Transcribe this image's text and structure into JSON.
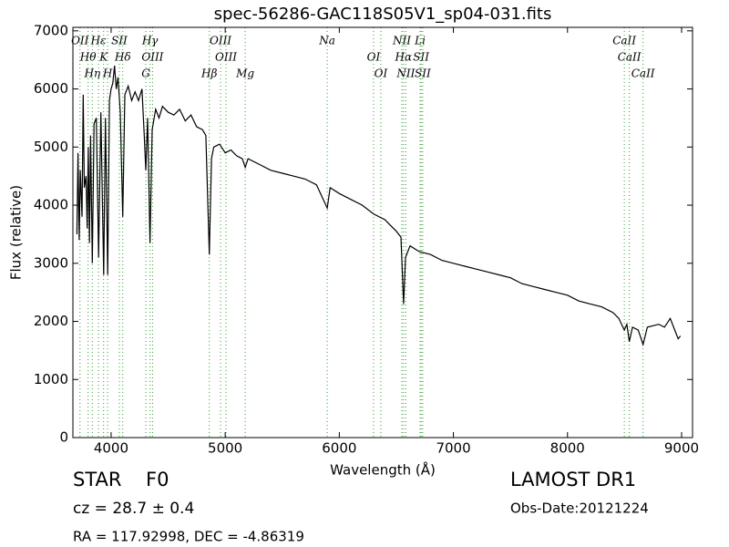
{
  "chart_data": {
    "type": "line",
    "title": "spec-56286-GAC118S05V1_sp04-031.fits",
    "x_label": "Wavelength (Å)",
    "y_label": "Flux (relative)",
    "color": "#000000",
    "marker_color": "#2ca02c",
    "xlim": [
      3665,
      9096
    ],
    "ylim": [
      0,
      7060
    ],
    "xticks": [
      4000,
      5000,
      6000,
      7000,
      8000,
      9000
    ],
    "yticks": [
      0,
      1000,
      2000,
      3000,
      4000,
      5000,
      6000,
      7000
    ],
    "x": [
      3700,
      3710,
      3720,
      3730,
      3745,
      3755,
      3765,
      3780,
      3790,
      3800,
      3810,
      3820,
      3835,
      3850,
      3870,
      3890,
      3910,
      3935,
      3950,
      3970,
      3985,
      4000,
      4015,
      4030,
      4045,
      4060,
      4080,
      4102,
      4120,
      4150,
      4180,
      4210,
      4240,
      4270,
      4290,
      4304,
      4320,
      4341,
      4360,
      4390,
      4420,
      4450,
      4500,
      4550,
      4600,
      4650,
      4700,
      4750,
      4800,
      4830,
      4861,
      4880,
      4900,
      4950,
      5000,
      5050,
      5100,
      5150,
      5175,
      5200,
      5300,
      5400,
      5500,
      5600,
      5700,
      5800,
      5894,
      5920,
      6000,
      6100,
      6200,
      6300,
      6400,
      6450,
      6500,
      6540,
      6563,
      6580,
      6620,
      6700,
      6800,
      6900,
      7000,
      7100,
      7200,
      7300,
      7400,
      7500,
      7600,
      7700,
      7800,
      7900,
      8000,
      8100,
      8200,
      8300,
      8400,
      8450,
      8498,
      8520,
      8542,
      8570,
      8620,
      8662,
      8700,
      8800,
      8850,
      8900,
      8940,
      8970,
      8990
    ],
    "values": [
      3500,
      4900,
      3400,
      4600,
      3800,
      5900,
      4300,
      4500,
      3600,
      5000,
      3350,
      5200,
      3000,
      5400,
      5500,
      3100,
      5600,
      2800,
      5500,
      2800,
      5800,
      6000,
      6100,
      6400,
      6000,
      6200,
      5600,
      3800,
      5900,
      6050,
      5800,
      5950,
      5800,
      6000,
      5200,
      4600,
      5500,
      3350,
      5300,
      5650,
      5500,
      5700,
      5600,
      5550,
      5650,
      5450,
      5550,
      5350,
      5300,
      5200,
      3150,
      4800,
      5000,
      5050,
      4900,
      4950,
      4850,
      4800,
      4650,
      4800,
      4700,
      4600,
      4550,
      4500,
      4450,
      4350,
      3950,
      4300,
      4200,
      4100,
      4000,
      3850,
      3750,
      3650,
      3550,
      3450,
      2300,
      3100,
      3300,
      3200,
      3150,
      3050,
      3000,
      2950,
      2900,
      2850,
      2800,
      2750,
      2650,
      2600,
      2550,
      2500,
      2450,
      2350,
      2300,
      2250,
      2150,
      2050,
      1850,
      1950,
      1650,
      1900,
      1850,
      1600,
      1900,
      1950,
      1900,
      2050,
      1850,
      1700,
      1750
    ],
    "lines": [
      {
        "wavelength": 3727,
        "label": "OII"
      },
      {
        "wavelength": 3798,
        "label": "Hθ"
      },
      {
        "wavelength": 3835,
        "label": "Hη"
      },
      {
        "wavelength": 3889,
        "label": "Hε"
      },
      {
        "wavelength": 3934,
        "label": "K"
      },
      {
        "wavelength": 3969,
        "label": "H"
      },
      {
        "wavelength": 4072,
        "label": "SII"
      },
      {
        "wavelength": 4102,
        "label": "Hδ"
      },
      {
        "wavelength": 4304,
        "label": "G"
      },
      {
        "wavelength": 4341,
        "label": "Hγ"
      },
      {
        "wavelength": 4363,
        "label": "OIII"
      },
      {
        "wavelength": 4861,
        "label": "Hβ"
      },
      {
        "wavelength": 4959,
        "label": "OIII"
      },
      {
        "wavelength": 5007,
        "label": "OIII"
      },
      {
        "wavelength": 5175,
        "label": "Mg"
      },
      {
        "wavelength": 5894,
        "label": "Na"
      },
      {
        "wavelength": 6300,
        "label": "OI"
      },
      {
        "wavelength": 6364,
        "label": "OI"
      },
      {
        "wavelength": 6548,
        "label": "NII"
      },
      {
        "wavelength": 6563,
        "label": "Hα"
      },
      {
        "wavelength": 6583,
        "label": "NII"
      },
      {
        "wavelength": 6708,
        "label": "Li"
      },
      {
        "wavelength": 6717,
        "label": "SII"
      },
      {
        "wavelength": 6731,
        "label": "SII"
      },
      {
        "wavelength": 8498,
        "label": "CaII"
      },
      {
        "wavelength": 8542,
        "label": "CaII"
      },
      {
        "wavelength": 8662,
        "label": "CaII"
      }
    ]
  },
  "info": {
    "class": "STAR",
    "subclass": "F0",
    "redshift": "cz = 28.7 ± 0.4",
    "coords": "RA = 117.92998, DEC = -4.86319",
    "survey": "LAMOST DR1",
    "date": "Obs-Date:20121224"
  }
}
